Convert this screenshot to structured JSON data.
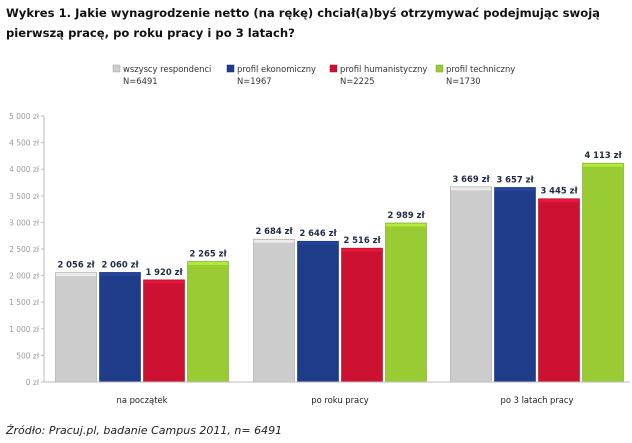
{
  "title": "Wykres 1. Jakie wynagrodzenie netto (na rękę) chciał(a)byś otrzymywać podejmując swoją pierwszą pracę, po roku pracy i po 3 latach?",
  "source": "Źródło: Pracuj.pl, badanie Campus 2011, n= 6491",
  "chart_data": {
    "type": "bar",
    "categories": [
      "na początek",
      "po roku pracy",
      "po 3 latach pracy"
    ],
    "series": [
      {
        "name": "wszyscy respondenci",
        "n": "N=6491",
        "color": "#cccccc",
        "values": [
          2056,
          2684,
          3669
        ],
        "labels": [
          "2 056 zł",
          "2 684 zł",
          "3 669 zł"
        ]
      },
      {
        "name": "profil ekonomiczny",
        "n": "N=1967",
        "color": "#1f3c8a",
        "values": [
          2060,
          2646,
          3657
        ],
        "labels": [
          "2 060 zł",
          "2 646 zł",
          "3 657 zł"
        ]
      },
      {
        "name": "profil humanistyczny",
        "n": "N=2225",
        "color": "#cc1133",
        "values": [
          1920,
          2516,
          3445
        ],
        "labels": [
          "1 920 zł",
          "2 516 zł",
          "3 445 zł"
        ]
      },
      {
        "name": "profil techniczny",
        "n": "N=1730",
        "color": "#99cc33",
        "values": [
          2265,
          2989,
          4113
        ],
        "labels": [
          "2 265 zł",
          "2 989 zł",
          "4 113 zł"
        ]
      }
    ],
    "ylim": [
      0,
      5000
    ],
    "yticks": [
      0,
      500,
      1000,
      1500,
      2000,
      2500,
      3000,
      3500,
      4000,
      4500,
      5000
    ],
    "ytick_labels": [
      "0 zł",
      "500 zł",
      "1 000 zł",
      "1 500 zł",
      "2 000 zł",
      "2 500 zł",
      "3 000 zł",
      "3 500 zł",
      "4 000 zł",
      "4 500 zł",
      "5 000 zł"
    ],
    "legend_position": "top",
    "grid": false
  }
}
